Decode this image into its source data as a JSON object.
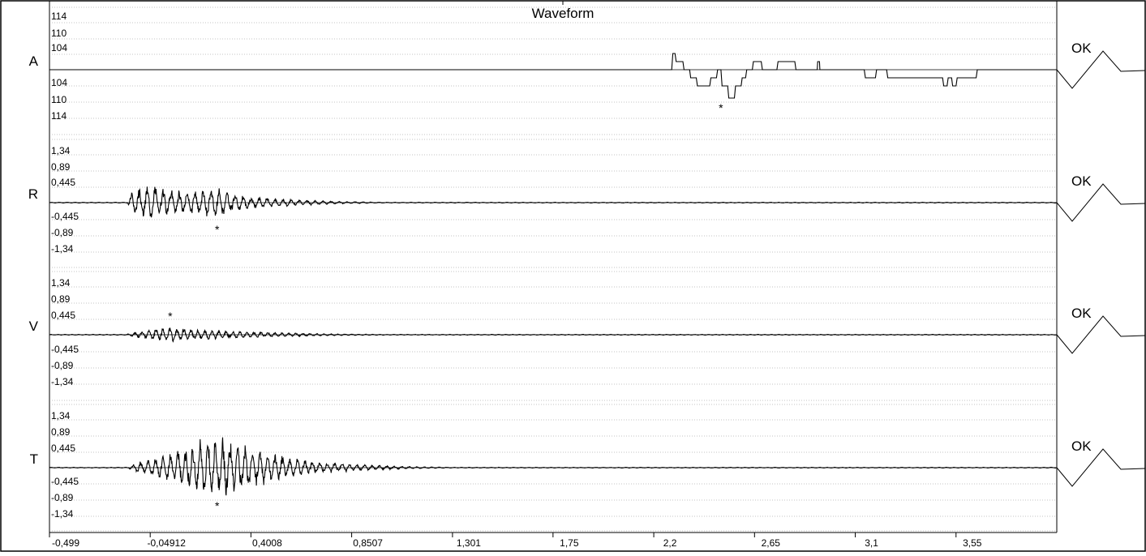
{
  "chart_data": {
    "type": "line",
    "title": "Waveform",
    "x_ticks": [
      "-0,499",
      "-0,04912",
      "0,4008",
      "0,8507",
      "1,301",
      "1,75",
      "2,2",
      "2,65",
      "3,1",
      "3,55"
    ],
    "x_tick_values": [
      -0.499,
      -0.04912,
      0.4008,
      0.8507,
      1.301,
      1.75,
      2.2,
      2.65,
      3.1,
      3.55
    ],
    "xlim": [
      -0.499,
      4.0
    ],
    "grid": true,
    "channels": [
      {
        "name": "A",
        "kind": "step",
        "y_ticks": [
          "114",
          "110",
          "104",
          "104",
          "110",
          "114"
        ],
        "ylim": [
          -120,
          120
        ],
        "status": "OK",
        "peak_marker": "*",
        "peak_x": 2.5,
        "steps": [
          [
            -0.499,
            0
          ],
          [
            2.28,
            0
          ],
          [
            2.285,
            40
          ],
          [
            2.295,
            40
          ],
          [
            2.3,
            20
          ],
          [
            2.33,
            20
          ],
          [
            2.335,
            0
          ],
          [
            2.36,
            0
          ],
          [
            2.365,
            -20
          ],
          [
            2.39,
            -20
          ],
          [
            2.395,
            -40
          ],
          [
            2.45,
            -40
          ],
          [
            2.455,
            -20
          ],
          [
            2.48,
            -20
          ],
          [
            2.485,
            0
          ],
          [
            2.5,
            0
          ],
          [
            2.505,
            -40
          ],
          [
            2.53,
            -40
          ],
          [
            2.535,
            -70
          ],
          [
            2.56,
            -70
          ],
          [
            2.565,
            -40
          ],
          [
            2.59,
            -40
          ],
          [
            2.595,
            -20
          ],
          [
            2.61,
            -20
          ],
          [
            2.615,
            0
          ],
          [
            2.64,
            0
          ],
          [
            2.645,
            20
          ],
          [
            2.68,
            20
          ],
          [
            2.685,
            0
          ],
          [
            2.75,
            0
          ],
          [
            2.755,
            20
          ],
          [
            2.83,
            20
          ],
          [
            2.835,
            0
          ],
          [
            2.93,
            0
          ],
          [
            2.932,
            20
          ],
          [
            2.94,
            20
          ],
          [
            2.942,
            0
          ],
          [
            3.14,
            0
          ],
          [
            3.145,
            -20
          ],
          [
            3.19,
            -20
          ],
          [
            3.195,
            0
          ],
          [
            3.24,
            0
          ],
          [
            3.245,
            -20
          ],
          [
            3.49,
            -20
          ],
          [
            3.495,
            -40
          ],
          [
            3.51,
            -40
          ],
          [
            3.515,
            -20
          ],
          [
            3.53,
            -20
          ],
          [
            3.535,
            -40
          ],
          [
            3.55,
            -40
          ],
          [
            3.555,
            -20
          ],
          [
            3.64,
            -20
          ],
          [
            3.645,
            0
          ],
          [
            4.0,
            0
          ]
        ]
      },
      {
        "name": "R",
        "kind": "oscillation",
        "y_ticks": [
          "1,34",
          "0,89",
          "0,445",
          "-0,445",
          "-0,89",
          "-1,34"
        ],
        "ylim": [
          -1.45,
          1.45
        ],
        "status": "OK",
        "peak_marker": "*",
        "peak_x": 0.25,
        "envelope": [
          [
            -0.499,
            0.01
          ],
          [
            -0.15,
            0.01
          ],
          [
            -0.14,
            0.25
          ],
          [
            -0.05,
            0.45
          ],
          [
            0.0,
            0.4
          ],
          [
            0.1,
            0.3
          ],
          [
            0.22,
            0.35
          ],
          [
            0.25,
            0.4
          ],
          [
            0.3,
            0.3
          ],
          [
            0.4,
            0.15
          ],
          [
            0.6,
            0.08
          ],
          [
            0.8,
            0.03
          ],
          [
            1.0,
            0.01
          ],
          [
            4.0,
            0.01
          ]
        ],
        "cycles_per_unit": 28
      },
      {
        "name": "V",
        "kind": "oscillation",
        "y_ticks": [
          "1,34",
          "0,89",
          "0,445",
          "-0,445",
          "-0,89",
          "-1,34"
        ],
        "ylim": [
          -1.45,
          1.45
        ],
        "status": "OK",
        "peak_marker": "*",
        "peak_x": 0.04,
        "envelope": [
          [
            -0.499,
            0.01
          ],
          [
            -0.16,
            0.01
          ],
          [
            -0.1,
            0.08
          ],
          [
            0.0,
            0.18
          ],
          [
            0.06,
            0.2
          ],
          [
            0.15,
            0.14
          ],
          [
            0.3,
            0.1
          ],
          [
            0.5,
            0.06
          ],
          [
            0.8,
            0.02
          ],
          [
            1.0,
            0.01
          ],
          [
            4.0,
            0.01
          ]
        ],
        "cycles_per_unit": 32
      },
      {
        "name": "T",
        "kind": "oscillation",
        "y_ticks": [
          "1,34",
          "0,89",
          "0,445",
          "-0,445",
          "-0,89",
          "-1,34"
        ],
        "ylim": [
          -1.45,
          1.45
        ],
        "status": "OK",
        "peak_marker": "*",
        "peak_x": 0.25,
        "envelope": [
          [
            -0.499,
            0.01
          ],
          [
            -0.15,
            0.01
          ],
          [
            -0.1,
            0.15
          ],
          [
            0.05,
            0.4
          ],
          [
            0.2,
            0.75
          ],
          [
            0.25,
            0.82
          ],
          [
            0.35,
            0.7
          ],
          [
            0.5,
            0.35
          ],
          [
            0.7,
            0.15
          ],
          [
            0.9,
            0.08
          ],
          [
            1.1,
            0.03
          ],
          [
            1.3,
            0.01
          ],
          [
            4.0,
            0.01
          ]
        ],
        "cycles_per_unit": 30
      }
    ]
  }
}
